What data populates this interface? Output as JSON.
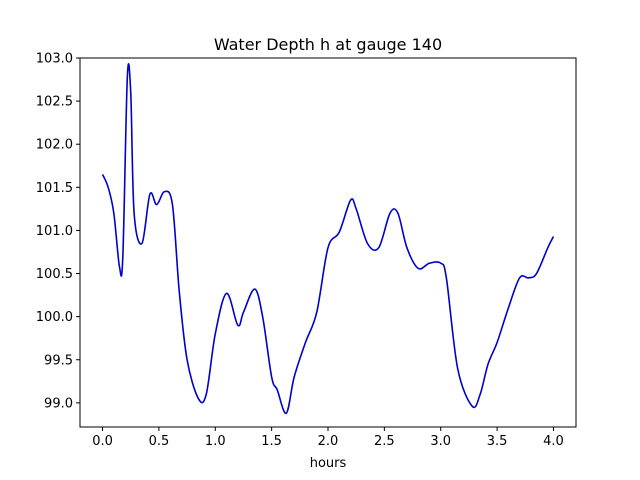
{
  "chart_data": {
    "type": "line",
    "title": "Water Depth h at gauge 140",
    "xlabel": "hours",
    "ylabel": "",
    "xlim": [
      -0.2,
      4.2
    ],
    "ylim": [
      98.72,
      103.0
    ],
    "grid": false,
    "x_ticks": [
      0.0,
      0.5,
      1.0,
      1.5,
      2.0,
      2.5,
      3.0,
      3.5,
      4.0
    ],
    "x_tick_labels": [
      "0.0",
      "0.5",
      "1.0",
      "1.5",
      "2.0",
      "2.5",
      "3.0",
      "3.5",
      "4.0"
    ],
    "y_ticks": [
      99.0,
      99.5,
      100.0,
      100.5,
      101.0,
      101.5,
      102.0,
      102.5,
      103.0
    ],
    "y_tick_labels": [
      "99.0",
      "99.5",
      "100.0",
      "100.5",
      "101.0",
      "101.5",
      "102.0",
      "102.5",
      "103.0"
    ],
    "series": [
      {
        "color": "#0000cc",
        "x": [
          0.0,
          0.05,
          0.1,
          0.15,
          0.18,
          0.22,
          0.25,
          0.28,
          0.35,
          0.42,
          0.48,
          0.55,
          0.62,
          0.68,
          0.75,
          0.85,
          0.92,
          1.0,
          1.1,
          1.2,
          1.25,
          1.35,
          1.42,
          1.5,
          1.55,
          1.63,
          1.7,
          1.8,
          1.9,
          2.0,
          2.1,
          2.2,
          2.25,
          2.35,
          2.45,
          2.55,
          2.62,
          2.7,
          2.8,
          2.9,
          3.0,
          3.05,
          3.15,
          3.28,
          3.35,
          3.42,
          3.5,
          3.6,
          3.7,
          3.78,
          3.85,
          3.95,
          4.0
        ],
        "y": [
          101.65,
          101.5,
          101.2,
          100.58,
          100.7,
          102.78,
          102.6,
          101.2,
          100.85,
          101.42,
          101.3,
          101.45,
          101.3,
          100.3,
          99.5,
          99.05,
          99.1,
          99.8,
          100.27,
          99.9,
          100.05,
          100.32,
          100.0,
          99.3,
          99.15,
          98.88,
          99.3,
          99.7,
          100.05,
          100.8,
          100.98,
          101.35,
          101.25,
          100.85,
          100.8,
          101.2,
          101.2,
          100.8,
          100.56,
          100.62,
          100.62,
          100.45,
          99.4,
          98.96,
          99.1,
          99.45,
          99.7,
          100.1,
          100.45,
          100.45,
          100.5,
          100.8,
          100.93
        ]
      }
    ]
  }
}
